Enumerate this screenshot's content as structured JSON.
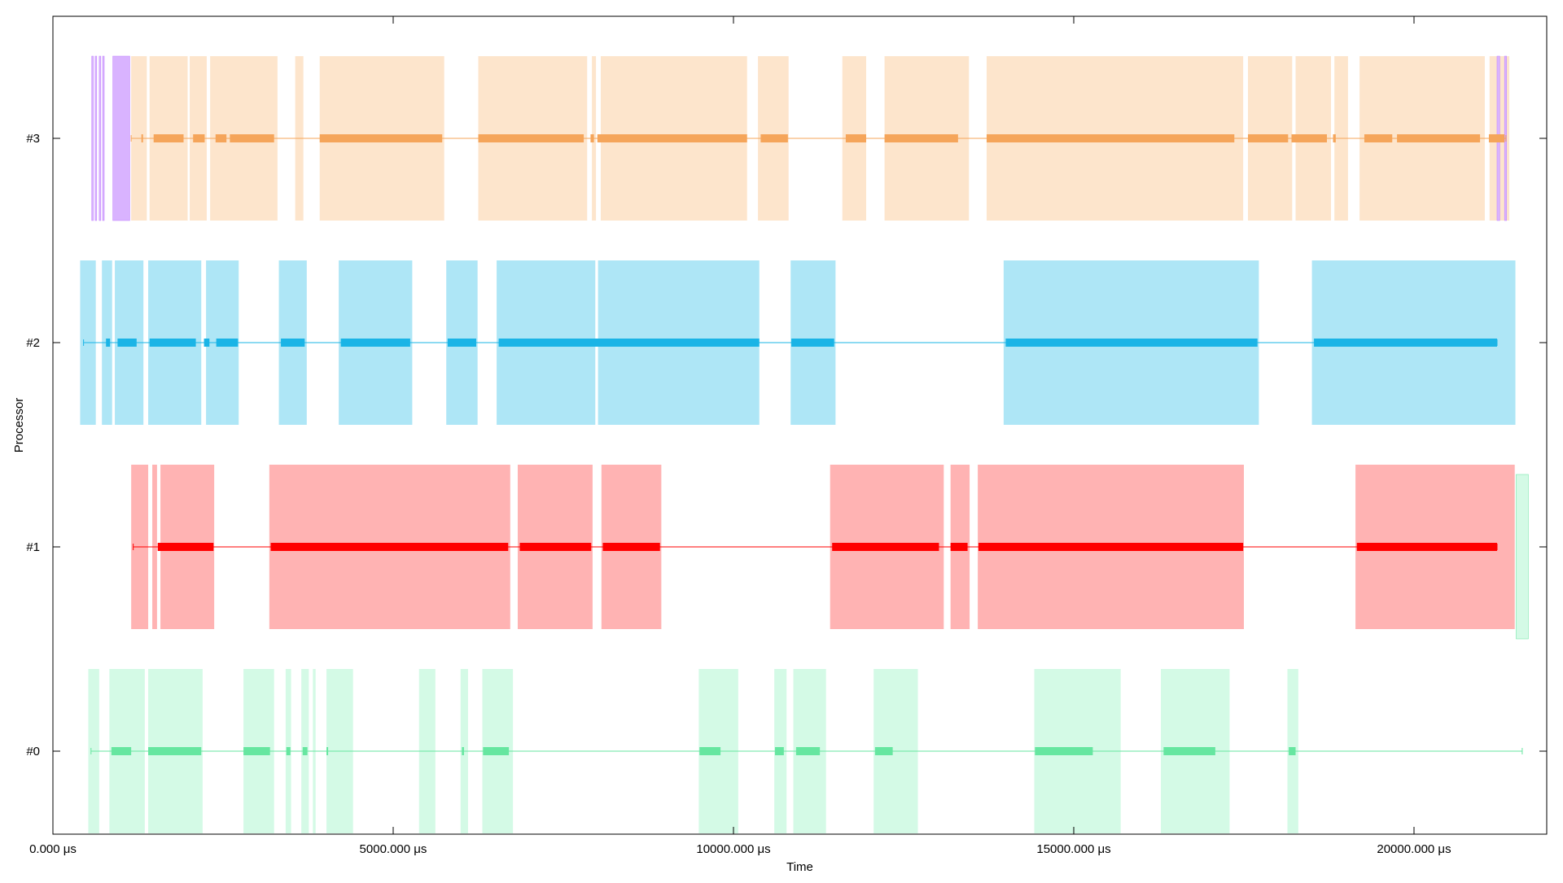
{
  "chart_data": {
    "type": "timeline",
    "xlabel": "Time",
    "ylabel": "Processor",
    "xlim": [
      0,
      21950
    ],
    "x_unit": "μs",
    "xticks": [
      0,
      5000,
      10000,
      15000,
      20000
    ],
    "xtick_labels": [
      "0.000 μs",
      "5000.000 μs",
      "10000.000 μs",
      "15000.000 μs",
      "20000.000 μs"
    ],
    "processors": [
      {
        "label": "#3",
        "color": "#f5a55a",
        "band_color": "#fde5cc",
        "line": [
          1150,
          21350
        ],
        "bands": [
          [
            1150,
            1380
          ],
          [
            1420,
            1980
          ],
          [
            2010,
            2260
          ],
          [
            2310,
            3300
          ],
          [
            3560,
            3680
          ],
          [
            3920,
            5750
          ],
          [
            6250,
            7850
          ],
          [
            7920,
            7980
          ],
          [
            8050,
            10200
          ],
          [
            10360,
            10810
          ],
          [
            11600,
            11950
          ],
          [
            12220,
            13460
          ],
          [
            13720,
            17490
          ],
          [
            17560,
            18210
          ],
          [
            18260,
            18780
          ],
          [
            18830,
            19030
          ],
          [
            19200,
            21040
          ],
          [
            21110,
            21400
          ]
        ],
        "activity": [
          [
            1300,
            1320
          ],
          [
            1480,
            1920
          ],
          [
            2060,
            2230
          ],
          [
            2390,
            2550
          ],
          [
            2600,
            3250
          ],
          [
            3920,
            5720
          ],
          [
            6250,
            7800
          ],
          [
            7900,
            7950
          ],
          [
            8000,
            10200
          ],
          [
            10400,
            10800
          ],
          [
            11650,
            11950
          ],
          [
            12220,
            13300
          ],
          [
            13720,
            17360
          ],
          [
            17560,
            18150
          ],
          [
            18200,
            18720
          ],
          [
            18810,
            18850
          ],
          [
            19270,
            19680
          ],
          [
            19750,
            20970
          ],
          [
            21100,
            21330
          ]
        ]
      },
      {
        "label": "#2",
        "color": "#1ab4e6",
        "band_color": "#aee6f6",
        "line": [
          450,
          21220
        ],
        "bands": [
          [
            400,
            630
          ],
          [
            720,
            870
          ],
          [
            910,
            1330
          ],
          [
            1400,
            2180
          ],
          [
            2250,
            2730
          ],
          [
            3320,
            3730
          ],
          [
            4200,
            5280
          ],
          [
            5780,
            6240
          ],
          [
            6520,
            7970
          ],
          [
            8010,
            10380
          ],
          [
            10840,
            11500
          ],
          [
            13970,
            17720
          ],
          [
            18500,
            21490
          ]
        ],
        "activity": [
          [
            780,
            840
          ],
          [
            950,
            1230
          ],
          [
            1420,
            2100
          ],
          [
            2220,
            2300
          ],
          [
            2400,
            2720
          ],
          [
            3350,
            3700
          ],
          [
            4230,
            5250
          ],
          [
            5800,
            6220
          ],
          [
            6550,
            10380
          ],
          [
            10850,
            11480
          ],
          [
            14000,
            17700
          ],
          [
            18530,
            21220
          ]
        ]
      },
      {
        "label": "#1",
        "color": "#ff0000",
        "band_color": "#ffb3b3",
        "line": [
          1180,
          21220
        ],
        "bands": [
          [
            1150,
            1400
          ],
          [
            1460,
            1530
          ],
          [
            1580,
            2370
          ],
          [
            3180,
            6720
          ],
          [
            6830,
            7930
          ],
          [
            8060,
            8940
          ],
          [
            11420,
            13090
          ],
          [
            13190,
            13470
          ],
          [
            13590,
            17500
          ],
          [
            19140,
            21480
          ]
        ],
        "activity": [
          [
            1540,
            2360
          ],
          [
            3200,
            6690
          ],
          [
            6860,
            7910
          ],
          [
            8080,
            8920
          ],
          [
            11450,
            13020
          ],
          [
            13190,
            13440
          ],
          [
            13600,
            17490
          ],
          [
            19160,
            21220
          ]
        ]
      },
      {
        "label": "#0",
        "color": "#66e6a0",
        "band_color": "#d4fae6",
        "line": [
          560,
          21590
        ],
        "bands": [
          [
            520,
            680
          ],
          [
            830,
            1350
          ],
          [
            1400,
            2200
          ],
          [
            2800,
            3250
          ],
          [
            3420,
            3500
          ],
          [
            3650,
            3760
          ],
          [
            3820,
            3860
          ],
          [
            4020,
            4410
          ],
          [
            5380,
            5620
          ],
          [
            5990,
            6100
          ],
          [
            6310,
            6760
          ],
          [
            9490,
            10070
          ],
          [
            10600,
            10780
          ],
          [
            10880,
            11360
          ],
          [
            12060,
            12710
          ],
          [
            14420,
            15690
          ],
          [
            16280,
            17290
          ],
          [
            18140,
            18300
          ]
        ],
        "activity": [
          [
            860,
            1150
          ],
          [
            1400,
            2180
          ],
          [
            2800,
            3190
          ],
          [
            3430,
            3490
          ],
          [
            3670,
            3740
          ],
          [
            4020,
            4030
          ],
          [
            6010,
            6040
          ],
          [
            6320,
            6700
          ],
          [
            9500,
            9810
          ],
          [
            10610,
            10740
          ],
          [
            10920,
            11270
          ],
          [
            12080,
            12340
          ],
          [
            14430,
            15280
          ],
          [
            16320,
            17080
          ],
          [
            18160,
            18260
          ]
        ]
      }
    ],
    "special_series": [
      {
        "processor": "#3",
        "color": "#d9b3ff",
        "stroke": "#c080ff",
        "bands": [
          [
            570,
            590
          ],
          [
            620,
            640
          ],
          [
            680,
            700
          ],
          [
            730,
            750
          ],
          [
            880,
            1130
          ],
          [
            21220,
            21260
          ],
          [
            21330,
            21360
          ]
        ]
      },
      {
        "processor": "#0/#1",
        "color": "#d4fae6",
        "stroke": "#66e6a0",
        "bands": [
          [
            21500,
            21680
          ]
        ]
      }
    ]
  }
}
